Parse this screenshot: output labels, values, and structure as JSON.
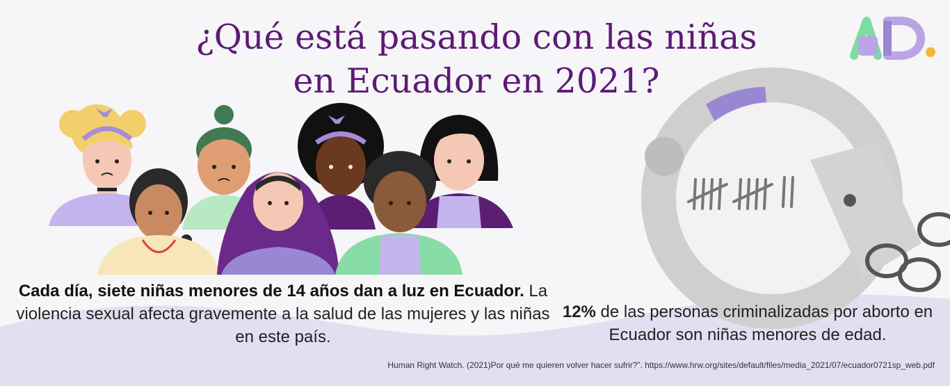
{
  "title": {
    "line1": "¿Qué está pasando con las niñas",
    "line2": "en Ecuador en 2021?"
  },
  "logo": {
    "text": "AD.",
    "colors": [
      "#7fdca0",
      "#b9a4e6",
      "#f2b73a"
    ]
  },
  "left_caption": {
    "bold": "Cada día, siete niñas menores de 14 años dan a luz en Ecuador.",
    "rest": " La violencia sexual afecta gravemente a la salud de las mujeres y las niñas en este país."
  },
  "right_caption": {
    "bold": "12%",
    "rest": " de las personas criminalizadas por aborto en Ecuador son niñas menores de edad."
  },
  "source": "Human Right Watch. (2021)Por qué me quieren volver hacer sufrir?”. https://www.hrw.org/sites/default/files/media_2021/07/ecuador0721sp_web.pdf",
  "colors": {
    "title": "#5d1a74",
    "accent_purple": "#9a87d2",
    "wave": "#e2dff0"
  }
}
